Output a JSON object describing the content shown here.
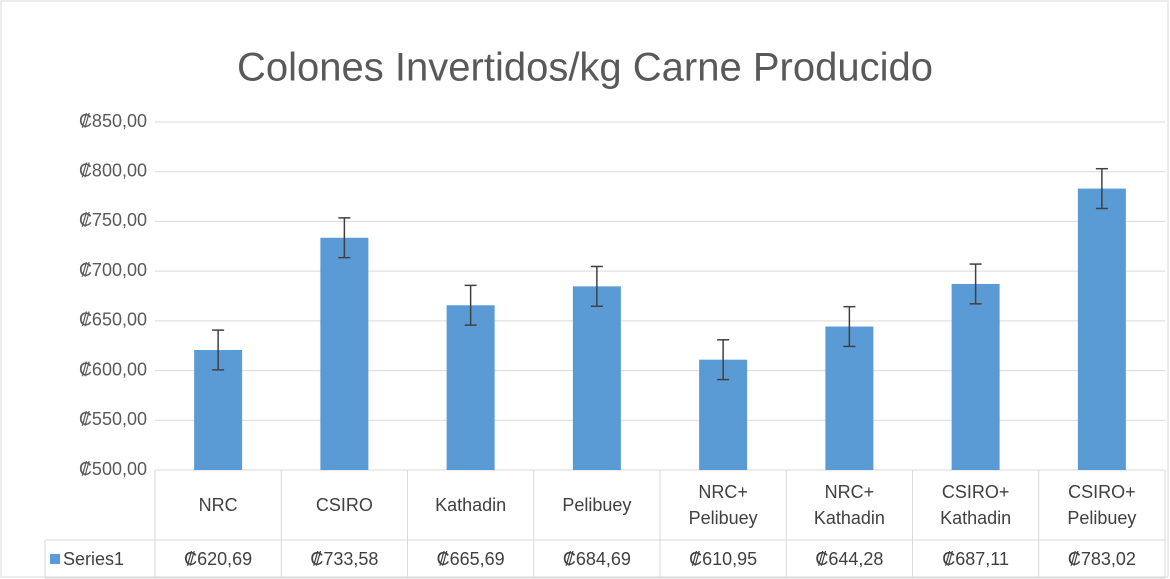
{
  "chart_data": {
    "type": "bar",
    "title": "Colones Invertidos/kg Carne Producido",
    "categories": [
      "NRC",
      "CSIRO",
      "Kathadin",
      "Pelibuey",
      "NRC+\nPelibuey",
      "NRC+\nKathadin",
      "CSIRO+\nKathadin",
      "CSIRO+\nPelibuey"
    ],
    "series": [
      {
        "name": "Series1",
        "color": "#5b9bd5",
        "values": [
          620.69,
          733.58,
          665.69,
          684.69,
          610.95,
          644.28,
          687.11,
          783.02
        ],
        "value_labels": [
          "₡620,69",
          "₡733,58",
          "₡665,69",
          "₡684,69",
          "₡610,95",
          "₡644,28",
          "₡687,11",
          "₡783,02"
        ],
        "errors": [
          20,
          20,
          20,
          20,
          20,
          20,
          20,
          20
        ]
      }
    ],
    "ylim": [
      500,
      850
    ],
    "yticks": [
      {
        "value": 500,
        "label": "₡500,00"
      },
      {
        "value": 550,
        "label": "₡550,00"
      },
      {
        "value": 600,
        "label": "₡600,00"
      },
      {
        "value": 650,
        "label": "₡650,00"
      },
      {
        "value": 700,
        "label": "₡700,00"
      },
      {
        "value": 750,
        "label": "₡750,00"
      },
      {
        "value": 800,
        "label": "₡800,00"
      },
      {
        "value": 850,
        "label": "₡850,00"
      }
    ],
    "grid": true
  }
}
